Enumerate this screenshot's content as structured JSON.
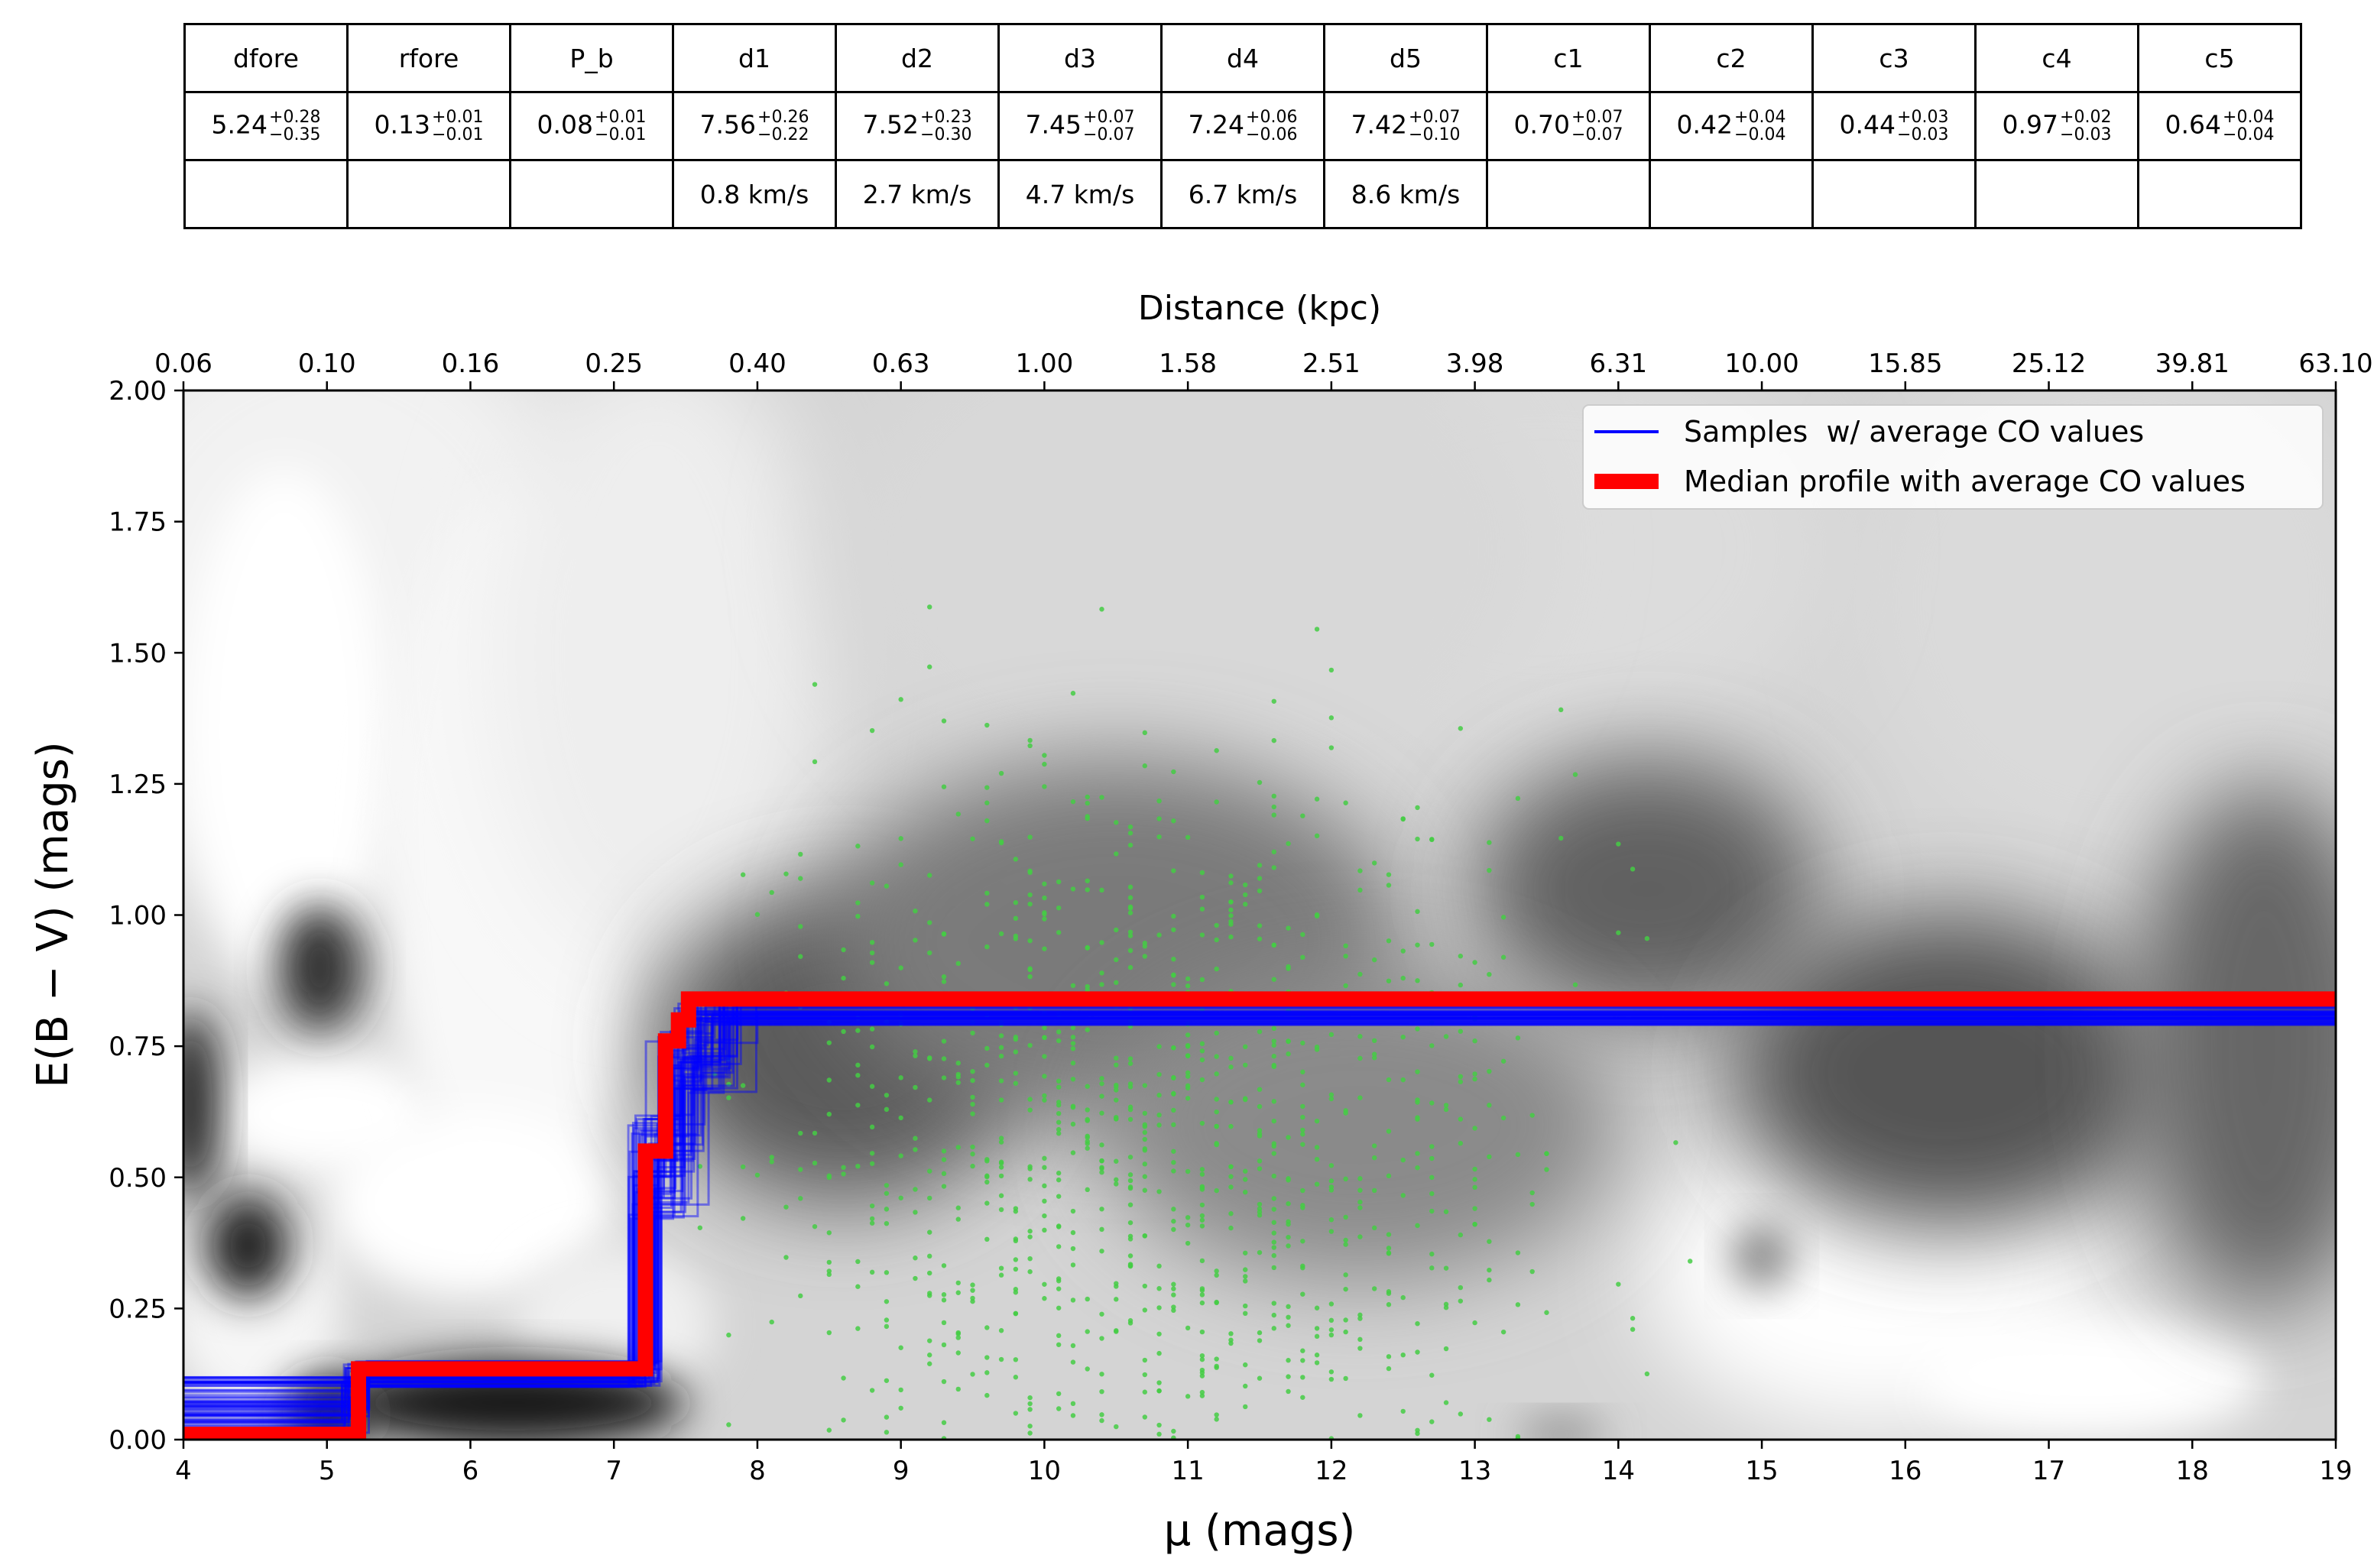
{
  "table": {
    "headers": [
      "dfore",
      "rfore",
      "P_b",
      "d1",
      "d2",
      "d3",
      "d4",
      "d5",
      "c1",
      "c2",
      "c3",
      "c4",
      "c5"
    ],
    "values": [
      {
        "v": "5.24",
        "up": "+0.28",
        "lo": "−0.35"
      },
      {
        "v": "0.13",
        "up": "+0.01",
        "lo": "−0.01"
      },
      {
        "v": "0.08",
        "up": "+0.01",
        "lo": "−0.01"
      },
      {
        "v": "7.56",
        "up": "+0.26",
        "lo": "−0.22"
      },
      {
        "v": "7.52",
        "up": "+0.23",
        "lo": "−0.30"
      },
      {
        "v": "7.45",
        "up": "+0.07",
        "lo": "−0.07"
      },
      {
        "v": "7.24",
        "up": "+0.06",
        "lo": "−0.06"
      },
      {
        "v": "7.42",
        "up": "+0.07",
        "lo": "−0.10"
      },
      {
        "v": "0.70",
        "up": "+0.07",
        "lo": "−0.07"
      },
      {
        "v": "0.42",
        "up": "+0.04",
        "lo": "−0.04"
      },
      {
        "v": "0.44",
        "up": "+0.03",
        "lo": "−0.03"
      },
      {
        "v": "0.97",
        "up": "+0.02",
        "lo": "−0.03"
      },
      {
        "v": "0.64",
        "up": "+0.04",
        "lo": "−0.04"
      }
    ],
    "velocities": [
      "",
      "",
      "",
      "0.8 km/s",
      "2.7 km/s",
      "4.7 km/s",
      "6.7 km/s",
      "8.6 km/s",
      "",
      "",
      "",
      "",
      ""
    ]
  },
  "chart_data": {
    "type": "line",
    "xlabel": "μ (mags)",
    "ylabel": "E(B − V) (mags)",
    "xlim": [
      4,
      19
    ],
    "ylim": [
      0,
      2
    ],
    "xticks": [
      "4",
      "5",
      "6",
      "7",
      "8",
      "9",
      "10",
      "11",
      "12",
      "13",
      "14",
      "15",
      "16",
      "17",
      "18",
      "19"
    ],
    "yticks": [
      "0.00",
      "0.25",
      "0.50",
      "0.75",
      "1.00",
      "1.25",
      "1.50",
      "1.75",
      "2.00"
    ],
    "top_axis": {
      "label": "Distance (kpc)",
      "ticks": [
        "0.06",
        "0.10",
        "0.16",
        "0.25",
        "0.40",
        "0.63",
        "1.00",
        "1.58",
        "2.51",
        "3.98",
        "6.31",
        "10.00",
        "15.85",
        "25.12",
        "39.81",
        "63.10"
      ]
    },
    "legend": {
      "placement": "top-right",
      "entries": [
        "Samples  w/ average CO values",
        "Median profile with average CO values"
      ]
    },
    "series": [
      {
        "name": "Median profile with average CO values",
        "color": "#ff0000",
        "x": [
          4.0,
          5.22,
          5.22,
          7.22,
          7.22,
          7.36,
          7.36,
          7.45,
          7.45,
          7.52,
          7.52,
          19.0
        ],
        "y": [
          0.01,
          0.01,
          0.135,
          0.135,
          0.55,
          0.55,
          0.76,
          0.76,
          0.8,
          0.8,
          0.84,
          0.84
        ]
      }
    ],
    "samples": {
      "name": "Samples  w/ average CO values",
      "color": "#0000ff",
      "mu_first_step": [
        5.1,
        5.3
      ],
      "mu_steps": [
        7.1,
        7.9
      ],
      "ebv_final": [
        0.79,
        0.85
      ]
    },
    "colors": {
      "median": "#ff0000",
      "samples": "#0000ff",
      "stars": "#44cc44",
      "density": "gray"
    }
  }
}
